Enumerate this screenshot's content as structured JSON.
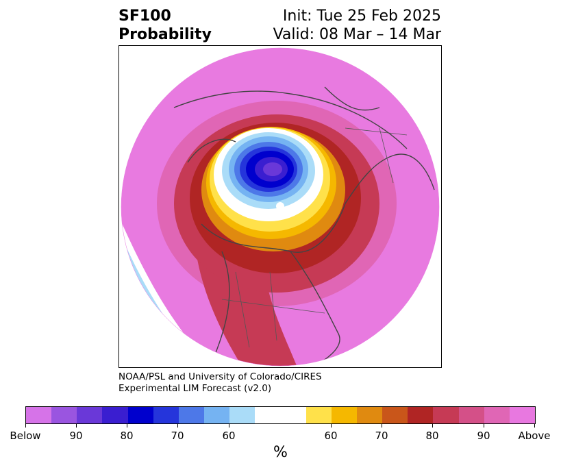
{
  "title": {
    "left": "SF100\nProbability",
    "init": "Init: Tue 25 Feb 2025",
    "valid": "Valid: 08 Mar – 14 Mar"
  },
  "credit": {
    "line1": "NOAA/PSL and University of Colorado/CIRES",
    "line2": "Experimental LIM Forecast (v2.0)"
  },
  "colorbar": {
    "unit": "%",
    "tick_labels": [
      "Below",
      "90",
      "80",
      "70",
      "60",
      "60",
      "70",
      "80",
      "90",
      "Above"
    ],
    "colors": [
      "#d673e8",
      "#9a55e0",
      "#6a38d8",
      "#3a1ed0",
      "#0000cd",
      "#2535db",
      "#4d78e8",
      "#75b3f2",
      "#aadcf8",
      "#ffffff",
      "#ffe14a",
      "#f5b800",
      "#e08a10",
      "#c9561a",
      "#b02524",
      "#c63a55",
      "#d45088",
      "#e066b5",
      "#e878e0"
    ]
  },
  "map": {
    "background_color": "#e87ae0",
    "low_center_color": "#0000cd",
    "high_band_color": "#b02524"
  }
}
